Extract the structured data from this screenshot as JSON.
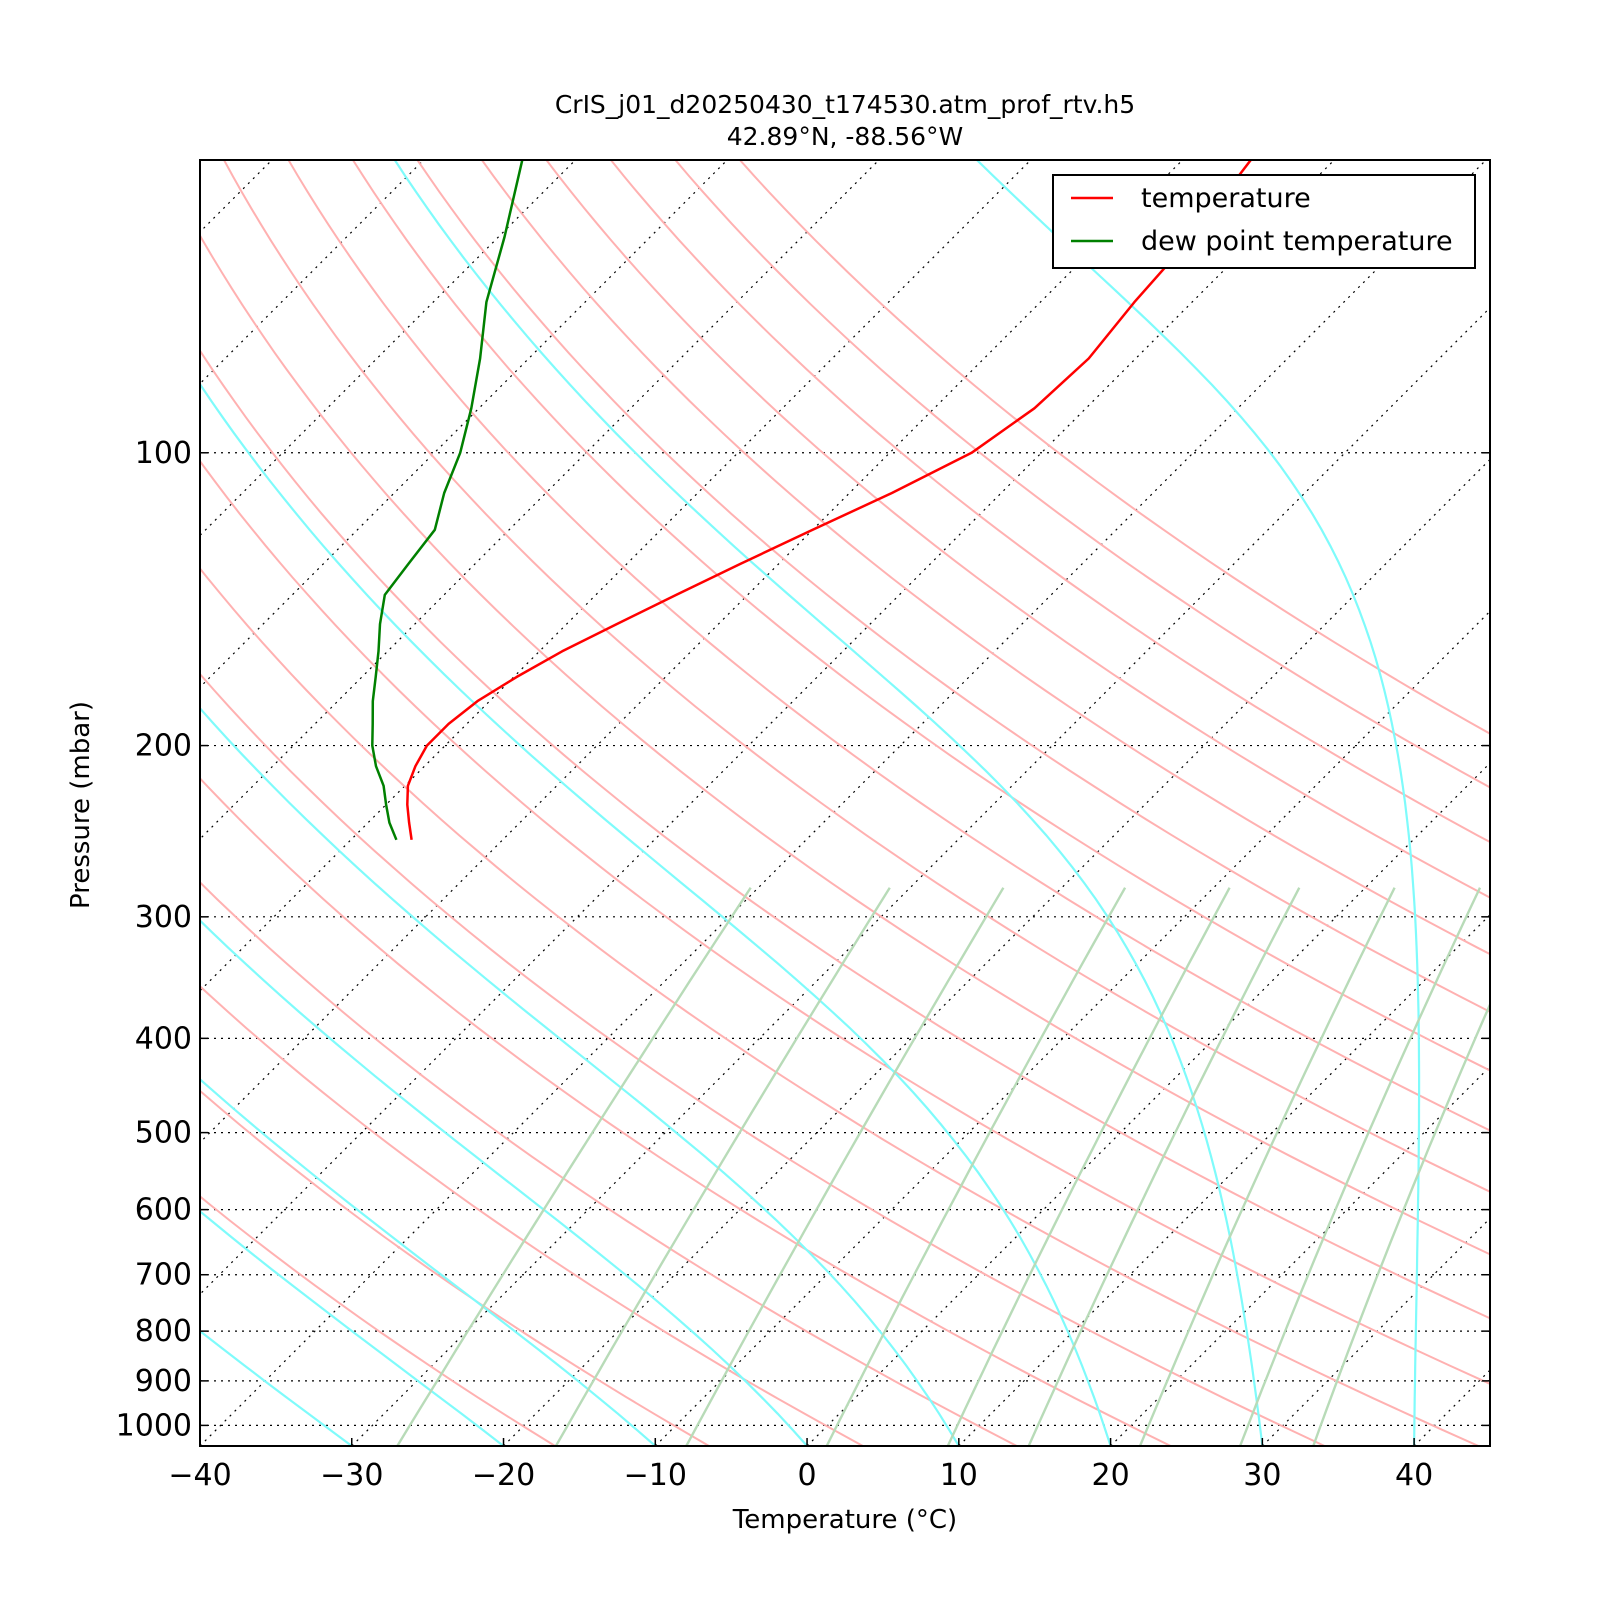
{
  "chart_data": {
    "type": "line",
    "title": "CrIS_j01_d20250430_t174530.atm_prof_rtv.h5",
    "subtitle": "42.89°N, -88.56°W",
    "xlabel": "Temperature (°C)",
    "ylabel": "Pressure (mbar)",
    "xlim": [
      -40,
      45
    ],
    "ylim": [
      1050,
      50
    ],
    "y_scale": "log",
    "skew": "skew-T log-p",
    "x_ticks": [
      -40,
      -30,
      -20,
      -10,
      0,
      10,
      20,
      30,
      40
    ],
    "x_tick_labels": [
      "−40",
      "−30",
      "−20",
      "−10",
      "0",
      "10",
      "20",
      "30",
      "40"
    ],
    "y_ticks": [
      100,
      200,
      300,
      400,
      500,
      600,
      700,
      800,
      900,
      1000
    ],
    "y_tick_labels": [
      "100",
      "200",
      "300",
      "400",
      "500",
      "600",
      "700",
      "800",
      "900",
      "1000"
    ],
    "grid": "pressure levels dotted",
    "legend": {
      "position": "top-right"
    },
    "series": [
      {
        "name": "temperature",
        "color": "#ff0000",
        "points": [
          {
            "p": 250,
            "t": -66.0
          },
          {
            "p": 240,
            "t": -67.3
          },
          {
            "p": 230,
            "t": -68.6
          },
          {
            "p": 220,
            "t": -69.8
          },
          {
            "p": 210,
            "t": -70.6
          },
          {
            "p": 200,
            "t": -71.2
          },
          {
            "p": 190,
            "t": -71.2
          },
          {
            "p": 180,
            "t": -70.8
          },
          {
            "p": 170,
            "t": -69.8
          },
          {
            "p": 160,
            "t": -68.5
          },
          {
            "p": 150,
            "t": -66.7
          },
          {
            "p": 140,
            "t": -64.7
          },
          {
            "p": 130,
            "t": -62.5
          },
          {
            "p": 120,
            "t": -60.0
          },
          {
            "p": 110,
            "t": -57.2
          },
          {
            "p": 100,
            "t": -54.6
          },
          {
            "p": 90,
            "t": -53.4
          },
          {
            "p": 80,
            "t": -53.1
          },
          {
            "p": 70,
            "t": -53.8
          },
          {
            "p": 60,
            "t": -54.3
          },
          {
            "p": 50,
            "t": -55.5
          }
        ]
      },
      {
        "name": "dew point temperature",
        "color": "#008000",
        "points": [
          {
            "p": 250,
            "t": -67.0
          },
          {
            "p": 240,
            "t": -68.6
          },
          {
            "p": 230,
            "t": -70.0
          },
          {
            "p": 220,
            "t": -71.4
          },
          {
            "p": 210,
            "t": -73.2
          },
          {
            "p": 200,
            "t": -74.8
          },
          {
            "p": 190,
            "t": -76.2
          },
          {
            "p": 180,
            "t": -77.7
          },
          {
            "p": 170,
            "t": -79.1
          },
          {
            "p": 160,
            "t": -80.6
          },
          {
            "p": 150,
            "t": -82.3
          },
          {
            "p": 140,
            "t": -83.9
          },
          {
            "p": 130,
            "t": -84.4
          },
          {
            "p": 120,
            "t": -84.9
          },
          {
            "p": 110,
            "t": -86.7
          },
          {
            "p": 100,
            "t": -88.3
          },
          {
            "p": 90,
            "t": -90.5
          },
          {
            "p": 80,
            "t": -93.2
          },
          {
            "p": 70,
            "t": -96.5
          },
          {
            "p": 60,
            "t": -99.6
          },
          {
            "p": 50,
            "t": -103.5
          }
        ]
      }
    ],
    "dry_adiabats_theta_K": [
      253,
      263,
      273,
      283,
      293,
      303,
      313,
      323,
      333,
      343,
      353,
      363,
      373,
      383,
      393,
      403,
      413,
      423,
      433
    ],
    "moist_adiabats_surface_C": [
      -40,
      -30,
      -20,
      -10,
      0,
      10,
      20,
      30,
      40,
      50,
      60
    ],
    "mixing_ratio_lines_g_kg": [
      0.4,
      1,
      2,
      4,
      7,
      10,
      16,
      24,
      32
    ],
    "colors": {
      "dry_adiabat": "#ffb1b1",
      "moist_adiabat": "#7ffbfb",
      "mixing_ratio": "#b8dbb8",
      "isotherm": "#000000"
    }
  }
}
